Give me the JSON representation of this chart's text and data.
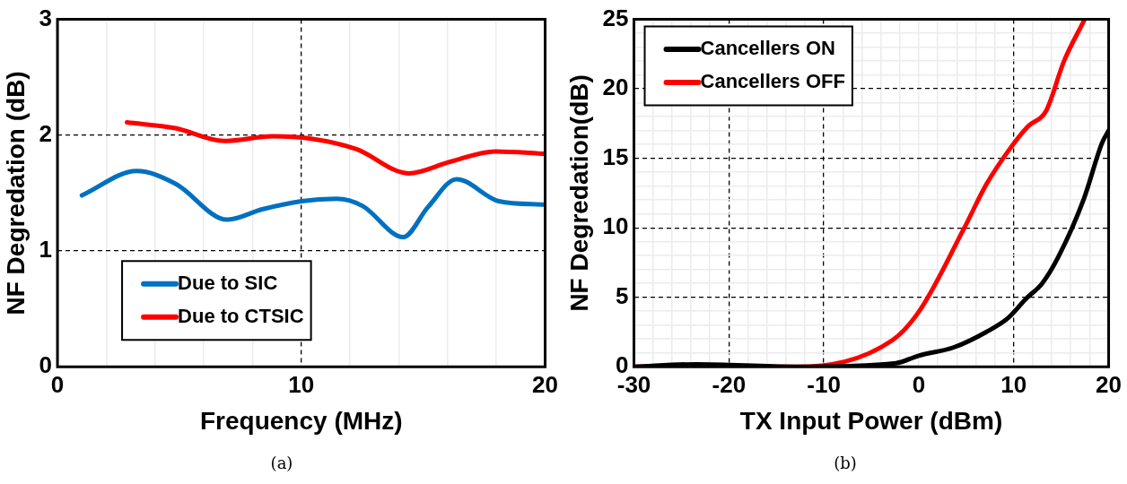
{
  "chart_data": [
    {
      "type": "line",
      "xlabel": "Frequency (MHz)",
      "ylabel": "NF Degredation (dB)",
      "xlim": [
        0,
        20
      ],
      "xticks": [
        0,
        {
          "value": 2,
          "label": null
        },
        {
          "value": 4,
          "label": null
        },
        {
          "value": 6,
          "label": null
        },
        {
          "value": 8,
          "label": null
        },
        10,
        {
          "value": 12,
          "label": null
        },
        {
          "value": 14,
          "label": null
        },
        {
          "value": 16,
          "label": null
        },
        {
          "value": 18,
          "label": null
        },
        20
      ],
      "ylim": [
        0,
        3
      ],
      "yticks": [
        0,
        1,
        2,
        3
      ],
      "grid": true,
      "legend": "bottom left",
      "marker": "none",
      "annotations": [
        "(a)"
      ],
      "series": [
        {
          "name": "Due to SIC",
          "color": "#0070c0",
          "x": [
            1.0,
            3.25,
            4.84,
            6.96,
            8.4,
            10.0,
            11.45,
            12.5,
            14.18,
            15.2,
            16.37,
            18.1,
            20
          ],
          "values": [
            1.48,
            1.69,
            1.58,
            1.27,
            1.36,
            1.43,
            1.45,
            1.39,
            1.12,
            1.38,
            1.62,
            1.43,
            1.4
          ]
        },
        {
          "name": "Due to CTSIC",
          "color": "#ff0000",
          "x": [
            2.85,
            4.84,
            6.83,
            8.81,
            10.4,
            12.26,
            14.4,
            16.1,
            17.96,
            20
          ],
          "values": [
            2.11,
            2.06,
            1.95,
            1.99,
            1.97,
            1.88,
            1.67,
            1.77,
            1.86,
            1.84
          ]
        }
      ]
    },
    {
      "type": "line",
      "xlabel": "TX Input Power (dBm)",
      "ylabel": "NF Degredation(dB)",
      "xlim": [
        -30,
        20
      ],
      "xticks": [
        -30,
        {
          "value": -28,
          "label": null
        },
        {
          "value": -26,
          "label": null
        },
        {
          "value": -24,
          "label": null
        },
        {
          "value": -22,
          "label": null
        },
        -20,
        {
          "value": -18,
          "label": null
        },
        {
          "value": -16,
          "label": null
        },
        {
          "value": -14,
          "label": null
        },
        {
          "value": -12,
          "label": null
        },
        -10,
        {
          "value": -8,
          "label": null
        },
        {
          "value": -6,
          "label": null
        },
        {
          "value": -4,
          "label": null
        },
        {
          "value": -2,
          "label": null
        },
        0,
        {
          "value": 2,
          "label": null
        },
        {
          "value": 4,
          "label": null
        },
        {
          "value": 6,
          "label": null
        },
        {
          "value": 8,
          "label": null
        },
        10,
        {
          "value": 12,
          "label": null
        },
        {
          "value": 14,
          "label": null
        },
        {
          "value": 16,
          "label": null
        },
        {
          "value": 18,
          "label": null
        },
        20
      ],
      "ylim": [
        0,
        25
      ],
      "yticks": [
        0,
        {
          "value": 1,
          "label": null
        },
        {
          "value": 2,
          "label": null
        },
        {
          "value": 3,
          "label": null
        },
        {
          "value": 4,
          "label": null
        },
        5,
        {
          "value": 6,
          "label": null
        },
        {
          "value": 7,
          "label": null
        },
        {
          "value": 8,
          "label": null
        },
        {
          "value": 9,
          "label": null
        },
        10,
        {
          "value": 11,
          "label": null
        },
        {
          "value": 12,
          "label": null
        },
        {
          "value": 13,
          "label": null
        },
        {
          "value": 14,
          "label": null
        },
        15,
        {
          "value": 16,
          "label": null
        },
        {
          "value": 17,
          "label": null
        },
        {
          "value": 18,
          "label": null
        },
        {
          "value": 19,
          "label": null
        },
        20,
        {
          "value": 21,
          "label": null
        },
        {
          "value": 22,
          "label": null
        },
        {
          "value": 23,
          "label": null
        },
        {
          "value": 24,
          "label": null
        },
        25
      ],
      "grid": true,
      "legend": "top left",
      "marker": "none",
      "annotations": [
        "(b)"
      ],
      "series": [
        {
          "name": "Cancellers ON",
          "color": "#000000",
          "x": [
            -30,
            -23.4,
            -13.1,
            -2.4,
            0,
            3.7,
            7.1,
            9.4,
            11.3,
            13.0,
            14.7,
            17.4,
            19.3,
            20
          ],
          "values": [
            0,
            0.18,
            0,
            0.26,
            0.8,
            1.4,
            2.5,
            3.5,
            4.9,
            6.0,
            7.9,
            12.1,
            16.1,
            17.0
          ]
        },
        {
          "name": "Cancellers OFF",
          "color": "#ff0000",
          "x": [
            -30,
            -12.9,
            -2.8,
            0.15,
            4.8,
            7.1,
            9.4,
            11.5,
            13.4,
            15.3,
            17.4
          ],
          "values": [
            0,
            0,
            1.9,
            4.1,
            10.0,
            13.1,
            15.5,
            17.3,
            18.4,
            22.0,
            24.9
          ]
        }
      ]
    }
  ]
}
